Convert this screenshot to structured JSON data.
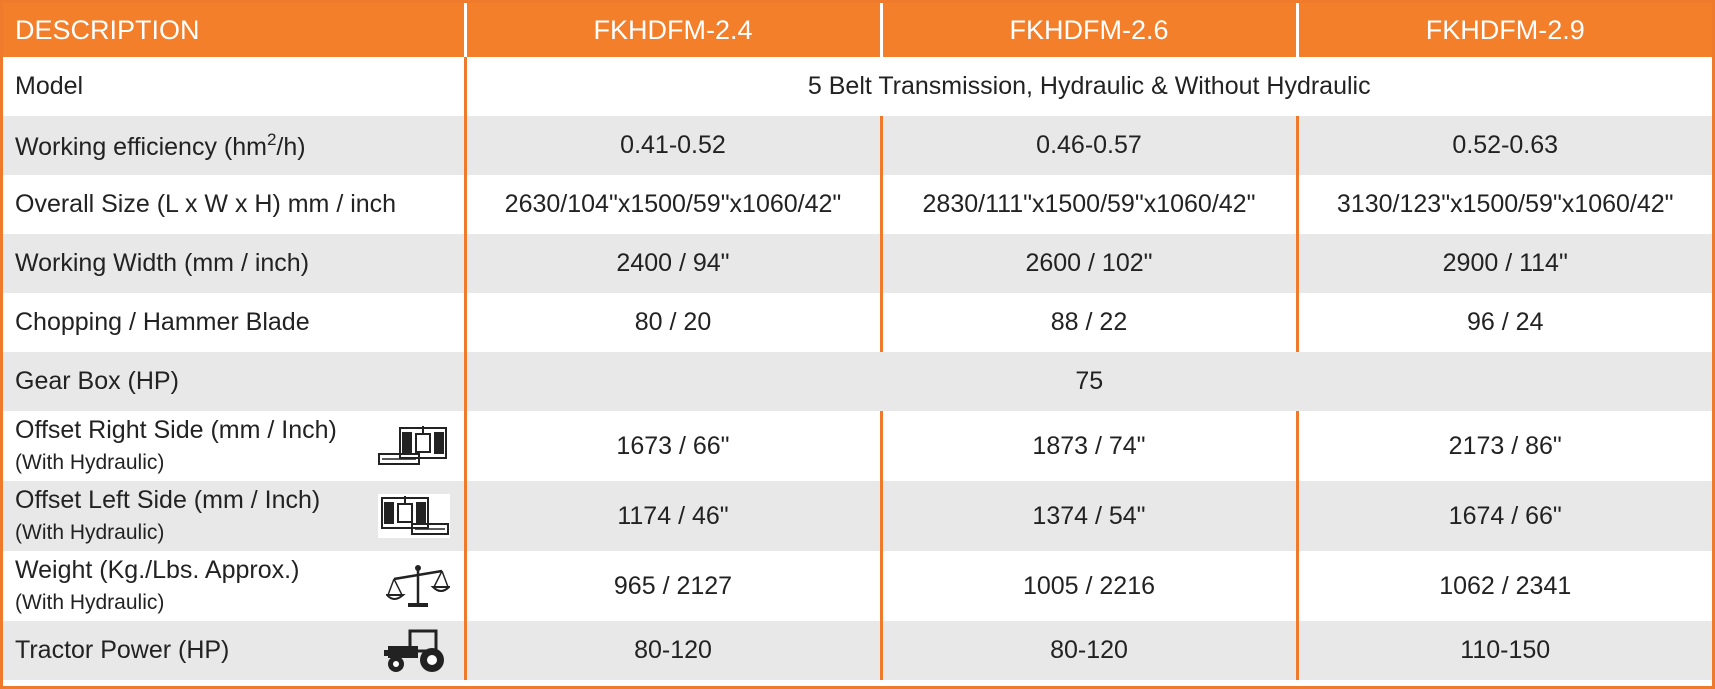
{
  "header": {
    "description": "DESCRIPTION",
    "models": [
      "FKHDFM-2.4",
      "FKHDFM-2.6",
      "FKHDFM-2.9"
    ]
  },
  "rows": {
    "model": {
      "label": "Model",
      "value": "5 Belt Transmission, Hydraulic & Without Hydraulic"
    },
    "efficiency": {
      "label_pre": "Working efficiency (hm",
      "label_sup": "2",
      "label_post": "/h)",
      "values": [
        "0.41-0.52",
        "0.46-0.57",
        "0.52-0.63"
      ]
    },
    "size": {
      "label": "Overall Size (L x W x H) mm / inch",
      "values": [
        "2630/104\"x1500/59\"x1060/42\"",
        "2830/111\"x1500/59\"x1060/42\"",
        "3130/123\"x1500/59\"x1060/42\""
      ]
    },
    "width": {
      "label": "Working Width (mm / inch)",
      "values": [
        "2400 / 94\"",
        "2600 / 102\"",
        "2900 / 114\""
      ]
    },
    "blade": {
      "label": "Chopping / Hammer Blade",
      "values": [
        "80 / 20",
        "88 / 22",
        "96 / 24"
      ]
    },
    "gearbox": {
      "label": "Gear Box (HP)",
      "value": "75"
    },
    "offset_right": {
      "label": "Offset Right Side (mm / Inch)",
      "sub": "(With Hydraulic)",
      "icon": "offset-right-icon",
      "values": [
        "1673 / 66\"",
        "1873 / 74\"",
        "2173 / 86\""
      ]
    },
    "offset_left": {
      "label": "Offset Left Side (mm / Inch)",
      "sub": "(With Hydraulic)",
      "icon": "offset-left-icon",
      "values": [
        "1174 / 46\"",
        "1374 / 54\"",
        "1674 / 66\""
      ]
    },
    "weight": {
      "label": "Weight (Kg./Lbs. Approx.)",
      "sub": "(With Hydraulic)",
      "icon": "scale-icon",
      "values": [
        "965 / 2127",
        "1005 / 2216",
        "1062 / 2341"
      ]
    },
    "tractor": {
      "label": "Tractor Power (HP)",
      "icon": "tractor-icon",
      "values": [
        "80-120",
        "80-120",
        "110-150"
      ]
    }
  },
  "colors": {
    "accent": "#f47f2a",
    "row_grey": "#e8e8e8"
  }
}
